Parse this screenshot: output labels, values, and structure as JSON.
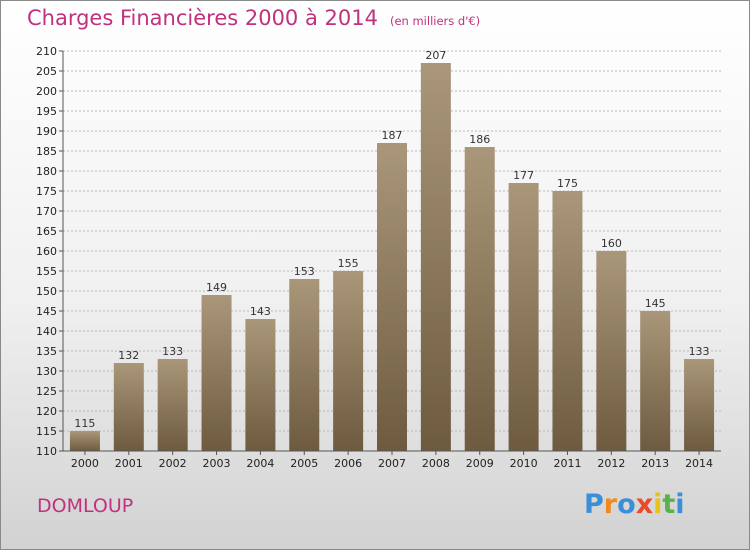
{
  "page": {
    "title": "Charges Financières 2000 à 2014",
    "subtitle": "(en milliers d'€)",
    "commune": "DOMLOUP",
    "logo": {
      "letters": [
        "P",
        "r",
        "o",
        "x",
        "i",
        "t",
        "i"
      ],
      "colors": [
        "#3a8fd6",
        "#f08a1c",
        "#3a8fd6",
        "#e84a2a",
        "#e8c21a",
        "#5ab24a",
        "#3a8fd6"
      ]
    }
  },
  "chart_data": {
    "type": "bar",
    "title": "Charges Financières 2000 à 2014",
    "subtitle": "(en milliers d'€)",
    "categories": [
      "2000",
      "2001",
      "2002",
      "2003",
      "2004",
      "2005",
      "2006",
      "2007",
      "2008",
      "2009",
      "2010",
      "2011",
      "2012",
      "2013",
      "2014"
    ],
    "values": [
      115,
      132,
      133,
      149,
      143,
      153,
      155,
      187,
      207,
      186,
      177,
      175,
      160,
      145,
      133
    ],
    "ylim": [
      110,
      210
    ],
    "ytick_step": 5,
    "grid": true,
    "data_labels": true,
    "colors": {
      "bar_top": "#aa977a",
      "bar_bottom": "#6e5b3f",
      "grid": "#b8b8b8",
      "axis": "#555555"
    }
  }
}
